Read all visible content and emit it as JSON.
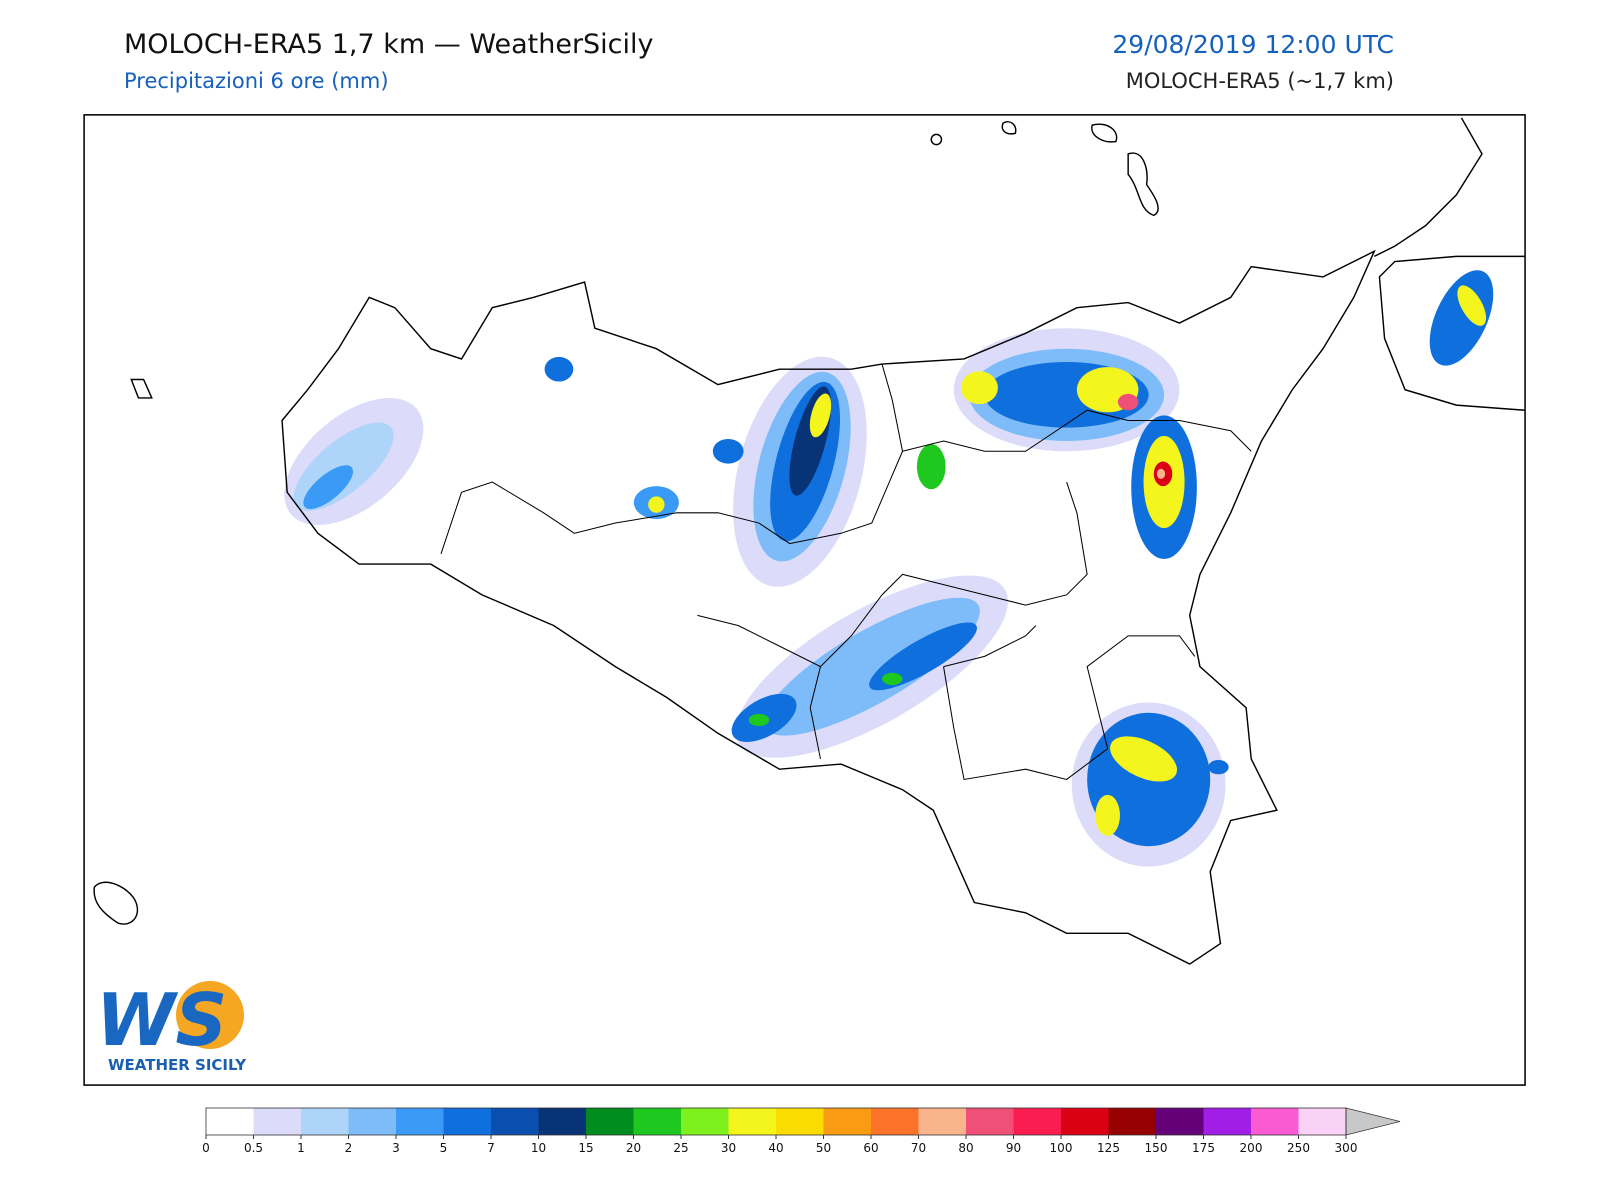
{
  "header": {
    "title": "MOLOCH-ERA5 1,7 km — WeatherSicily",
    "subtitle": "Precipitazioni 6 ore (mm)",
    "date": "29/08/2019 12:00 UTC",
    "model": "MOLOCH-ERA5 (~1,7 km)"
  },
  "logo": {
    "initials": "WS",
    "name": "WEATHER SICILY"
  },
  "colorbar": {
    "levels": [
      0,
      0.5,
      1,
      2,
      3,
      5,
      7,
      10,
      15,
      20,
      25,
      30,
      40,
      50,
      60,
      70,
      80,
      90,
      100,
      125,
      150,
      175,
      200,
      250,
      300
    ],
    "colors": [
      "#ffffff",
      "#dcdcfa",
      "#aed4fa",
      "#7dbcf8",
      "#3a9af5",
      "#0f6fdd",
      "#0a4fb0",
      "#093377",
      "#008c1e",
      "#1ec81e",
      "#7ef01e",
      "#f5f51e",
      "#fadc00",
      "#fa9b14",
      "#fa7328",
      "#fab48c",
      "#f05078",
      "#fa1e50",
      "#dc0014",
      "#960000",
      "#640078",
      "#a01ee6",
      "#fa5ad2",
      "#fad2f5"
    ],
    "extend_color": "#c8c8c8"
  }
}
